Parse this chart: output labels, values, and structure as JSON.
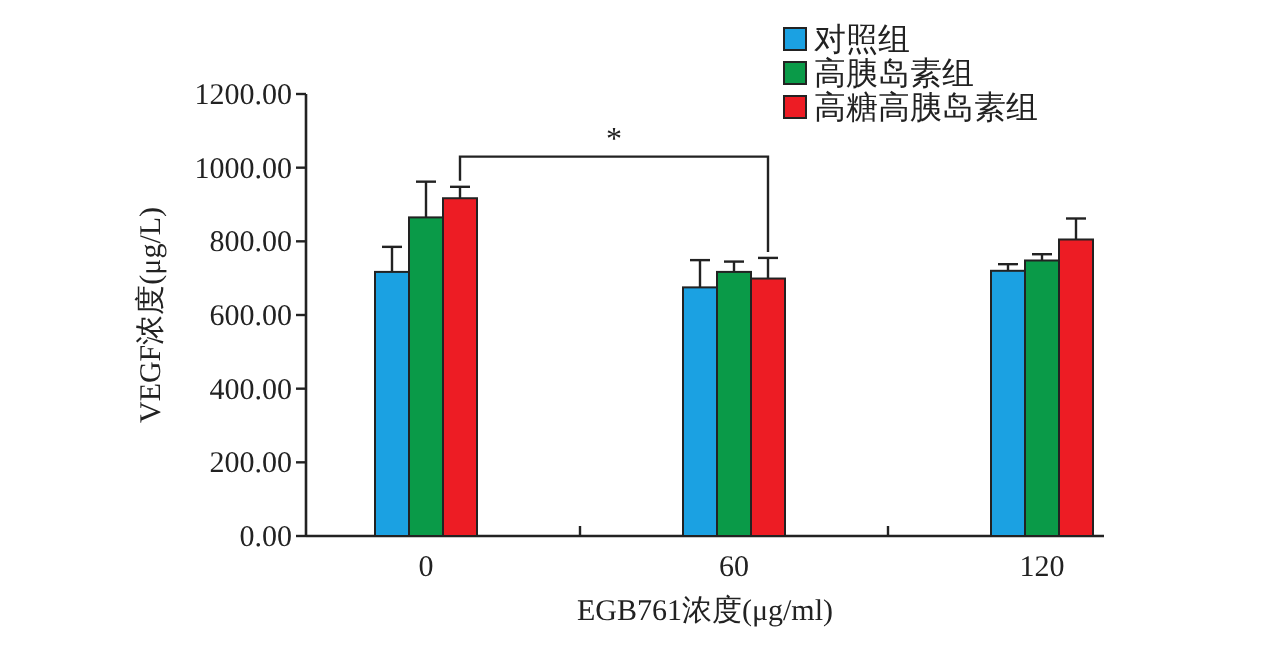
{
  "chart_data": {
    "type": "bar",
    "xlabel": "EGB761浓度(μg/ml)",
    "ylabel": "VEGF浓度(μg/L)",
    "categories": [
      "0",
      "60",
      "120"
    ],
    "series": [
      {
        "name": "对照组",
        "color": "#1ba1e2",
        "values": [
          717,
          675,
          720
        ],
        "errors": [
          68,
          74,
          18
        ]
      },
      {
        "name": "高胰岛素组",
        "color": "#0a9a48",
        "values": [
          865,
          717,
          748
        ],
        "errors": [
          97,
          28,
          17
        ]
      },
      {
        "name": "高糖高胰岛素组",
        "color": "#ed1c24",
        "values": [
          917,
          699,
          805
        ],
        "errors": [
          31,
          56,
          57
        ]
      }
    ],
    "ylim": [
      0,
      1200
    ],
    "yticks": [
      {
        "value": 0,
        "label": "0.00"
      },
      {
        "value": 200,
        "label": "200.00"
      },
      {
        "value": 400,
        "label": "400.00"
      },
      {
        "value": 600,
        "label": "600.00"
      },
      {
        "value": 800,
        "label": "800.00"
      },
      {
        "value": 1000,
        "label": "1000.00"
      },
      {
        "value": 1200,
        "label": "1200.00"
      }
    ],
    "legend": "top right",
    "annotations": [
      "*"
    ]
  }
}
